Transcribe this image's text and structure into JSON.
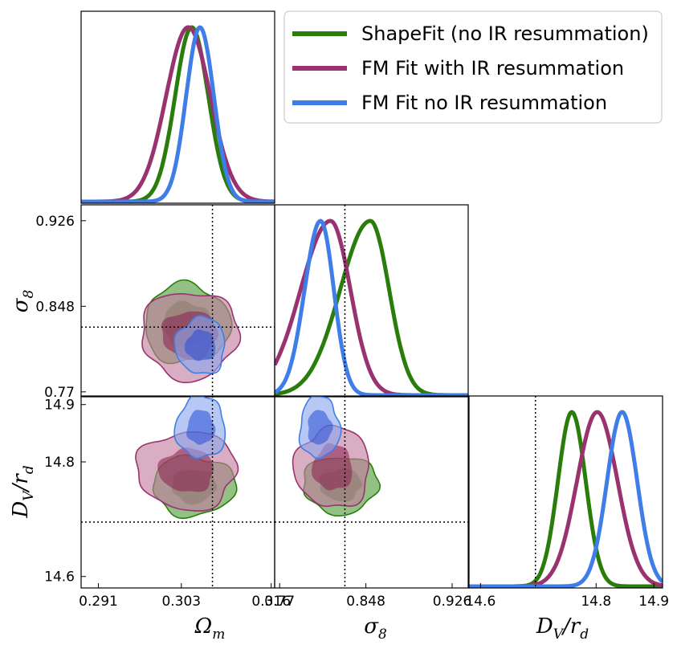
{
  "chart_data": {
    "type": "corner",
    "parameters": [
      {
        "key": "om",
        "label_base": "Ω",
        "label_sub": "m",
        "range": [
          0.2885,
          0.3165
        ],
        "ticks": [
          0.291,
          0.303,
          0.316
        ],
        "tick_labels": [
          "0.291",
          "0.303",
          "0.316"
        ],
        "fiducial": 0.3075
      },
      {
        "key": "s8",
        "label_base": "σ",
        "label_sub": "8",
        "range": [
          0.7655,
          0.9405
        ],
        "ticks": [
          0.77,
          0.848,
          0.926
        ],
        "tick_labels": [
          "0.77",
          "0.848",
          "0.926"
        ],
        "fiducial": 0.829
      },
      {
        "key": "dv",
        "label_base": "D",
        "label_sub": "V",
        "label_tail": "/r",
        "label_tail_sub": "d",
        "range": [
          14.58,
          14.915
        ],
        "ticks": [
          14.6,
          14.8,
          14.9
        ],
        "tick_labels": [
          "14.6",
          "14.8",
          "14.9"
        ],
        "fiducial": 14.695
      }
    ],
    "series": [
      {
        "name": "ShapeFit (no IR resummation)",
        "color": "#2a7d0a",
        "fill_outer": "#4f9a3a",
        "fill_inner": "#2f7a1c",
        "marginals": [
          {
            "mean": 0.3045,
            "sd": 0.0024
          },
          {
            "mean": 0.852,
            "sd": 0.017,
            "skew": 1.6
          },
          {
            "mean": 14.758,
            "sd": 0.024
          }
        ],
        "contours": {
          "om_s8": {
            "c": [
              0.3038,
              0.832
            ],
            "r1": [
              0.0035,
              0.02
            ],
            "r2": [
              0.0062,
              0.036
            ]
          },
          "om_dv": {
            "c": [
              0.3048,
              14.758
            ],
            "r1": [
              0.0032,
              0.03
            ],
            "r2": [
              0.006,
              0.052
            ]
          },
          "s8_dv": {
            "c": [
              0.825,
              14.76
            ],
            "r1": [
              0.019,
              0.028
            ],
            "r2": [
              0.034,
              0.05
            ]
          }
        }
      },
      {
        "name": "FM Fit with IR resummation",
        "color": "#9b3270",
        "fill_outer": "#c17c9e",
        "fill_inner": "#8a1f4e",
        "marginals": [
          {
            "mean": 0.304,
            "sd": 0.0032
          },
          {
            "mean": 0.816,
            "sd": 0.018,
            "skew": 1.5
          },
          {
            "mean": 14.802,
            "sd": 0.035
          }
        ],
        "contours": {
          "om_s8": {
            "c": [
              0.3042,
              0.822
            ],
            "r1": [
              0.004,
              0.022
            ],
            "r2": [
              0.007,
              0.04
            ]
          },
          "om_dv": {
            "c": [
              0.3038,
              14.785
            ],
            "r1": [
              0.004,
              0.038
            ],
            "r2": [
              0.0072,
              0.068
            ]
          },
          "s8_dv": {
            "c": [
              0.818,
              14.79
            ],
            "r1": [
              0.018,
              0.04
            ],
            "r2": [
              0.034,
              0.07
            ]
          }
        }
      },
      {
        "name": "FM Fit no IR resummation",
        "color": "#3f7ee8",
        "fill_outer": "#8aa6ee",
        "fill_inner": "#2a4fd6",
        "marginals": [
          {
            "mean": 0.3057,
            "sd": 0.002
          },
          {
            "mean": 0.807,
            "sd": 0.012,
            "skew": 1.2
          },
          {
            "mean": 14.845,
            "sd": 0.026
          }
        ],
        "contours": {
          "om_s8": {
            "c": [
              0.3058,
              0.812
            ],
            "r1": [
              0.0022,
              0.014
            ],
            "r2": [
              0.0036,
              0.026
            ]
          },
          "om_dv": {
            "c": [
              0.3058,
              14.86
            ],
            "r1": [
              0.002,
              0.03
            ],
            "r2": [
              0.0036,
              0.054
            ]
          },
          "s8_dv": {
            "c": [
              0.806,
              14.86
            ],
            "r1": [
              0.011,
              0.03
            ],
            "r2": [
              0.018,
              0.054
            ]
          }
        }
      }
    ]
  }
}
